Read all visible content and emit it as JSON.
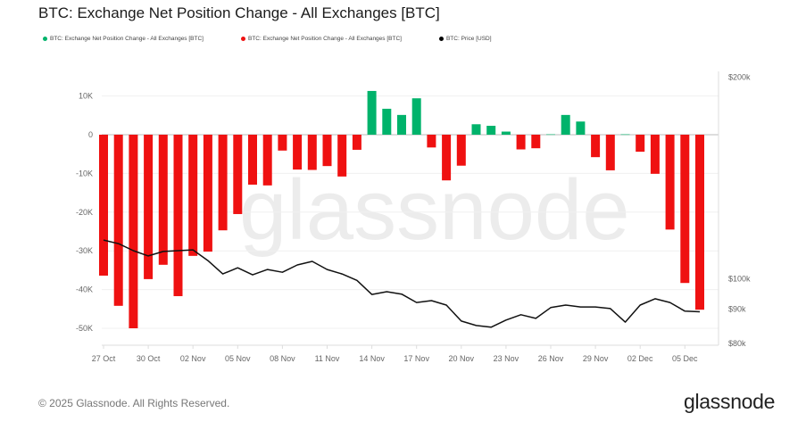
{
  "title": "BTC: Exchange Net Position Change - All Exchanges [BTC]",
  "legend": [
    {
      "label": "BTC: Exchange Net Position Change - All Exchanges [BTC]",
      "color": "#00b36b"
    },
    {
      "label": "BTC: Exchange Net Position Change - All Exchanges [BTC]",
      "color": "#ef1111"
    },
    {
      "label": "BTC: Price [USD]",
      "color": "#000000"
    }
  ],
  "watermark": "glassnode",
  "footer": {
    "copyright": "© 2025 Glassnode. All Rights Reserved.",
    "logo": "glassnode"
  },
  "chart_data": {
    "type": "bar",
    "title": "BTC: Exchange Net Position Change - All Exchanges [BTC]",
    "colors": {
      "positive": "#00b36b",
      "negative": "#ef1111",
      "price": "#111111"
    },
    "x_start": "2025-10-27",
    "x_ticks": [
      "27 Oct",
      "30 Oct",
      "02 Nov",
      "05 Nov",
      "08 Nov",
      "11 Nov",
      "14 Nov",
      "17 Nov",
      "20 Nov",
      "23 Nov",
      "26 Nov",
      "29 Nov",
      "02 Dec",
      "05 Dec"
    ],
    "y_left": {
      "ticks": [
        "10K",
        "0",
        "-10K",
        "-20K",
        "-30K",
        "-40K",
        "-50K"
      ],
      "tick_values": [
        10000,
        0,
        -10000,
        -20000,
        -30000,
        -40000,
        -50000
      ],
      "range": [
        -50000,
        10000
      ]
    },
    "y_right": {
      "scale": "log",
      "ticks": [
        "$200k",
        "$100k",
        "$90k",
        "$80k"
      ],
      "tick_values": [
        200000,
        100000,
        90000,
        80000
      ],
      "range": [
        80000,
        200000
      ]
    },
    "grid": true,
    "legend_position": "top-left",
    "series": [
      {
        "name": "BTC: Exchange Net Position Change - All Exchanges [BTC]",
        "axis": "left",
        "values": [
          -36400,
          -44200,
          -50000,
          -37300,
          -33600,
          -41700,
          -31300,
          -30200,
          -24700,
          -20500,
          -12900,
          -13100,
          -4100,
          -9000,
          -9100,
          -8100,
          -10800,
          -3900,
          11300,
          6700,
          5100,
          9400,
          -3300,
          -11800,
          -8000,
          2700,
          2300,
          800,
          -3800,
          -3500,
          100,
          5100,
          3400,
          -5800,
          -9200,
          100,
          -4400,
          -10100,
          -24500,
          -38300,
          -45200
        ]
      },
      {
        "name": "BTC: Price [USD]",
        "axis": "right",
        "type": "line",
        "values": [
          114200,
          112800,
          110100,
          108100,
          109800,
          110100,
          110400,
          106400,
          101600,
          103800,
          101300,
          103200,
          102200,
          104800,
          106100,
          103200,
          101600,
          99400,
          94700,
          95600,
          94800,
          92100,
          92700,
          91300,
          86400,
          85100,
          84600,
          86700,
          88300,
          87200,
          90500,
          91300,
          90700,
          90700,
          90200,
          86100,
          91300,
          93300,
          92100,
          89400,
          89200
        ]
      }
    ]
  }
}
